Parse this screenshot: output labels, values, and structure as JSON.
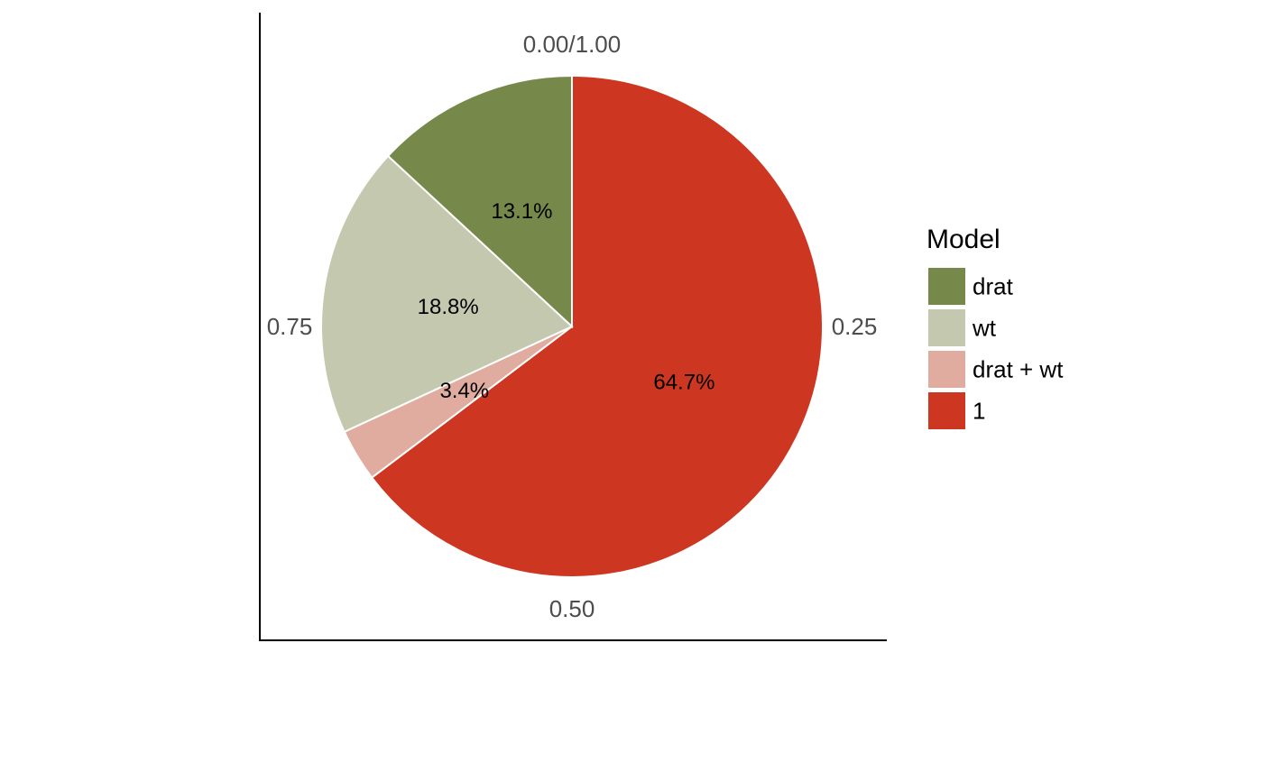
{
  "chart_data": {
    "type": "pie",
    "legend": {
      "title": "Model",
      "placement": "right"
    },
    "slices": [
      {
        "label": "drat",
        "value": 0.131,
        "percent_label": "13.1%",
        "color": "#77894A"
      },
      {
        "label": "wt",
        "value": 0.188,
        "percent_label": "18.8%",
        "color": "#C3C8AE"
      },
      {
        "label": "drat + wt",
        "value": 0.034,
        "percent_label": "3.4%",
        "color": "#E0ACA0"
      },
      {
        "label": "1",
        "value": 0.647,
        "percent_label": "64.7%",
        "color": "#CD3722"
      }
    ],
    "order_clockwise_from_top": [
      "1",
      "drat + wt",
      "wt",
      "drat"
    ],
    "angular_ticks": [
      {
        "value": 0.0,
        "label": "0.00/1.00"
      },
      {
        "value": 0.25,
        "label": "0.25"
      },
      {
        "value": 0.5,
        "label": "0.50"
      },
      {
        "value": 0.75,
        "label": "0.75"
      }
    ]
  }
}
